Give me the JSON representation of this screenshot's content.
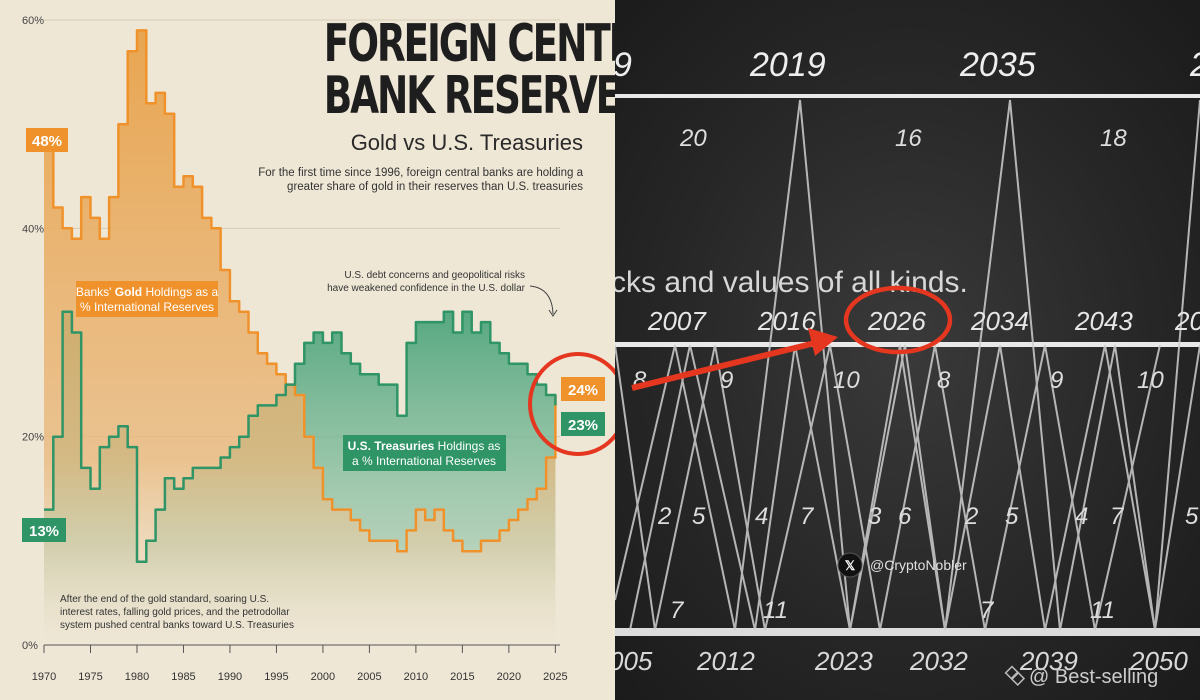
{
  "chart_data": {
    "type": "area",
    "title_lines": [
      "FOREIGN CENTRAL",
      "BANK RESERVES"
    ],
    "subtitle": "Gold vs U.S. Treasuries",
    "description": "For the first time since 1996, foreign central banks are holding a greater share of gold in their reserves than U.S. treasuries",
    "x_ticks": [
      "1970",
      "1975",
      "1980",
      "1985",
      "1990",
      "1995",
      "2000",
      "2005",
      "2010",
      "2015",
      "2020",
      "2025"
    ],
    "y_ticks": [
      "0%",
      "20%",
      "40%",
      "60%"
    ],
    "ylim": [
      0,
      60
    ],
    "xlim": [
      1970,
      2025.5
    ],
    "series": [
      {
        "name": "Banks' Gold Holdings as a % International Reserves",
        "color": "#f0922b",
        "x": [
          1970,
          1971,
          1972,
          1973,
          1974,
          1975,
          1976,
          1977,
          1978,
          1979,
          1980,
          1981,
          1982,
          1983,
          1984,
          1985,
          1986,
          1987,
          1988,
          1989,
          1990,
          1991,
          1992,
          1993,
          1994,
          1995,
          1996,
          1997,
          1998,
          1999,
          2000,
          2001,
          2002,
          2003,
          2004,
          2005,
          2006,
          2007,
          2008,
          2009,
          2010,
          2011,
          2012,
          2013,
          2014,
          2015,
          2016,
          2017,
          2018,
          2019,
          2020,
          2021,
          2022,
          2023,
          2024,
          2025
        ],
        "values": [
          48,
          42,
          40,
          39,
          43,
          41,
          39,
          43,
          50,
          57,
          59,
          52,
          53,
          51,
          44,
          45,
          44,
          41,
          40,
          36,
          33,
          32,
          30,
          28,
          27,
          26,
          25,
          24,
          20,
          17,
          14,
          13,
          13,
          12,
          11,
          10,
          10,
          10,
          9,
          11,
          13,
          12,
          13,
          11,
          10,
          9,
          9,
          10,
          10,
          11,
          12,
          13,
          14,
          15,
          18,
          24
        ]
      },
      {
        "name": "U.S. Treasuries Holdings as a % International Reserves",
        "color": "#2f9466",
        "x": [
          1970,
          1971,
          1972,
          1973,
          1974,
          1975,
          1976,
          1977,
          1978,
          1979,
          1980,
          1981,
          1982,
          1983,
          1984,
          1985,
          1986,
          1987,
          1988,
          1989,
          1990,
          1991,
          1992,
          1993,
          1994,
          1995,
          1996,
          1997,
          1998,
          1999,
          2000,
          2001,
          2002,
          2003,
          2004,
          2005,
          2006,
          2007,
          2008,
          2009,
          2010,
          2011,
          2012,
          2013,
          2014,
          2015,
          2016,
          2017,
          2018,
          2019,
          2020,
          2021,
          2022,
          2023,
          2024,
          2025
        ],
        "values": [
          13,
          20,
          32,
          30,
          17,
          15,
          19,
          20,
          21,
          19,
          8,
          10,
          13,
          16,
          15,
          16,
          17,
          17,
          17,
          18,
          19,
          20,
          22,
          23,
          23,
          24,
          25,
          27,
          29,
          30,
          29,
          30,
          28,
          27,
          26,
          26,
          25,
          25,
          22,
          29,
          31,
          31,
          31,
          32,
          30,
          32,
          30,
          31,
          29,
          28,
          27,
          27,
          26,
          25,
          24,
          23
        ]
      }
    ],
    "value_badges": {
      "gold_start": "48%",
      "treasury_start": "13%",
      "gold_end": "24%",
      "treasury_end": "23%"
    },
    "series_labels": {
      "gold_line1_a": "Banks' ",
      "gold_line1_b": "Gold",
      "gold_line1_c": " Holdings as a",
      "gold_line2": "% International Reserves",
      "treasury_line1_a": "U.S. Treasuries",
      "treasury_line1_b": " Holdings as",
      "treasury_line2": "a % International Reserves"
    },
    "annotations": {
      "debt_line1": "U.S. debt concerns and geopolitical risks",
      "debt_line2": "have weakened confidence in the U.S. dollar",
      "history_line1": "After the end of the gold standard, soaring U.S.",
      "history_line2": "interest rates, falling gold prices, and the petrodollar",
      "history_line3": "system pushed central banks toward U.S. Treasuries"
    },
    "colors": {
      "gold": "#f0922b",
      "treasury": "#2f9466",
      "highlight": "#e53620",
      "background": "#efe7d6"
    }
  },
  "cycle_chart": {
    "top_years": [
      "9",
      "2019",
      "2035",
      "2"
    ],
    "top_intervals": [
      "20",
      "16",
      "18"
    ],
    "text_fragment": "cks and values of all kinds.",
    "middle_years": [
      "2007",
      "2016",
      "2026",
      "2034",
      "2043",
      "20"
    ],
    "middle_intervals": [
      "8",
      "9",
      "10",
      "8",
      "9",
      "10"
    ],
    "inner_numbers": [
      "2",
      "5",
      "4",
      "7",
      "3",
      "6",
      "2",
      "5",
      "4",
      "7",
      "5"
    ],
    "bottom_intervals": [
      "7",
      "11",
      "7",
      "11"
    ],
    "bottom_years": [
      "005",
      "2012",
      "2023",
      "2032",
      "2039",
      "2050"
    ]
  },
  "watermarks": {
    "handle": "@CryptoNobler",
    "x_icon": "x-logo-icon",
    "source": "@ Best-selling",
    "source_icon": "diamond-logo-icon"
  }
}
